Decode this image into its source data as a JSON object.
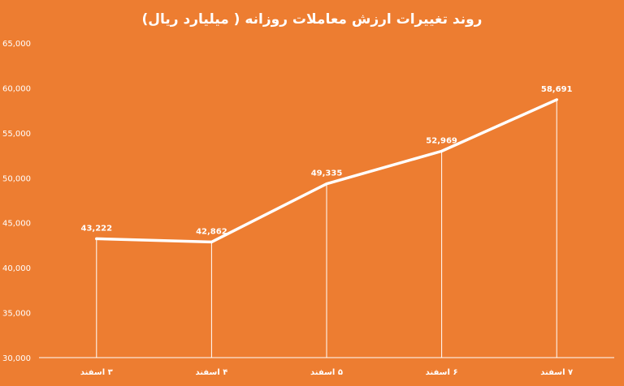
{
  "chart_data": {
    "type": "line",
    "title": "روند تغییرات ارزش معاملات روزانه ( میلیارد ریال)",
    "categories": [
      "۳ اسفند",
      "۴ اسفند",
      "۵ اسفند",
      "۶ اسفند",
      "۷ اسفند"
    ],
    "values": [
      43222,
      42862,
      49335,
      52969,
      58691
    ],
    "data_labels": [
      "43,222",
      "42,862",
      "49,335",
      "52,969",
      "58,691"
    ],
    "ylim": [
      30000,
      65000
    ],
    "yticks": [
      30000,
      35000,
      40000,
      45000,
      50000,
      55000,
      60000,
      65000
    ],
    "ytick_labels": [
      "30,000",
      "35,000",
      "40,000",
      "45,000",
      "50,000",
      "55,000",
      "60,000",
      "65,000"
    ],
    "drop_lines": true,
    "grid": false,
    "colors": {
      "background": "#ED7D31",
      "line": "#ffffff",
      "text": "#ffffff"
    }
  }
}
